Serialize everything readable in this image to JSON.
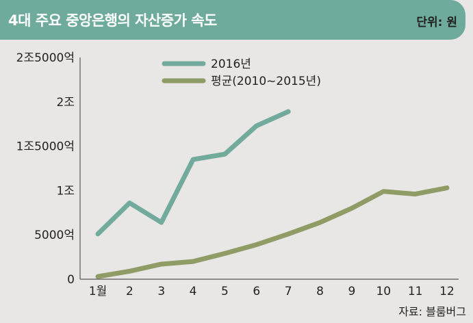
{
  "header": {
    "title": "4대 주요 중앙은행의 자산증가 속도",
    "unit": "단위: 원"
  },
  "source": "자료: 블룸버그",
  "colors": {
    "header_bg": "#6fab9c",
    "series_2016": "#72ab9c",
    "series_avg": "#8f9c66",
    "background": "#e8e7e5"
  },
  "chart_data": {
    "type": "line",
    "x": [
      1,
      2,
      3,
      4,
      5,
      6,
      7,
      8,
      9,
      10,
      11,
      12
    ],
    "x_tick_labels": [
      "1월",
      "2",
      "3",
      "4",
      "5",
      "6",
      "7",
      "8",
      "9",
      "10",
      "11",
      "12"
    ],
    "y_ticks": [
      0,
      5000,
      10000,
      15000,
      20000,
      25000
    ],
    "y_tick_labels": [
      "0",
      "5000억",
      "1조",
      "1조5000억",
      "2조",
      "2조5000억"
    ],
    "ylim": [
      0,
      25000
    ],
    "grid": false,
    "legend_position": "top-center",
    "series": [
      {
        "name": "2016년",
        "color_key": "series_2016",
        "points": [
          [
            1,
            5100
          ],
          [
            2,
            8600
          ],
          [
            3,
            6400
          ],
          [
            4,
            13500
          ],
          [
            5,
            14100
          ],
          [
            6,
            17300
          ],
          [
            7,
            18900
          ]
        ]
      },
      {
        "name": "평균(2010~2015년)",
        "color_key": "series_avg",
        "points": [
          [
            1,
            300
          ],
          [
            2,
            900
          ],
          [
            3,
            1700
          ],
          [
            4,
            2000
          ],
          [
            5,
            2900
          ],
          [
            6,
            3900
          ],
          [
            7,
            5100
          ],
          [
            8,
            6400
          ],
          [
            9,
            8000
          ],
          [
            10,
            9900
          ],
          [
            11,
            9600
          ],
          [
            12,
            10300
          ]
        ]
      }
    ]
  }
}
